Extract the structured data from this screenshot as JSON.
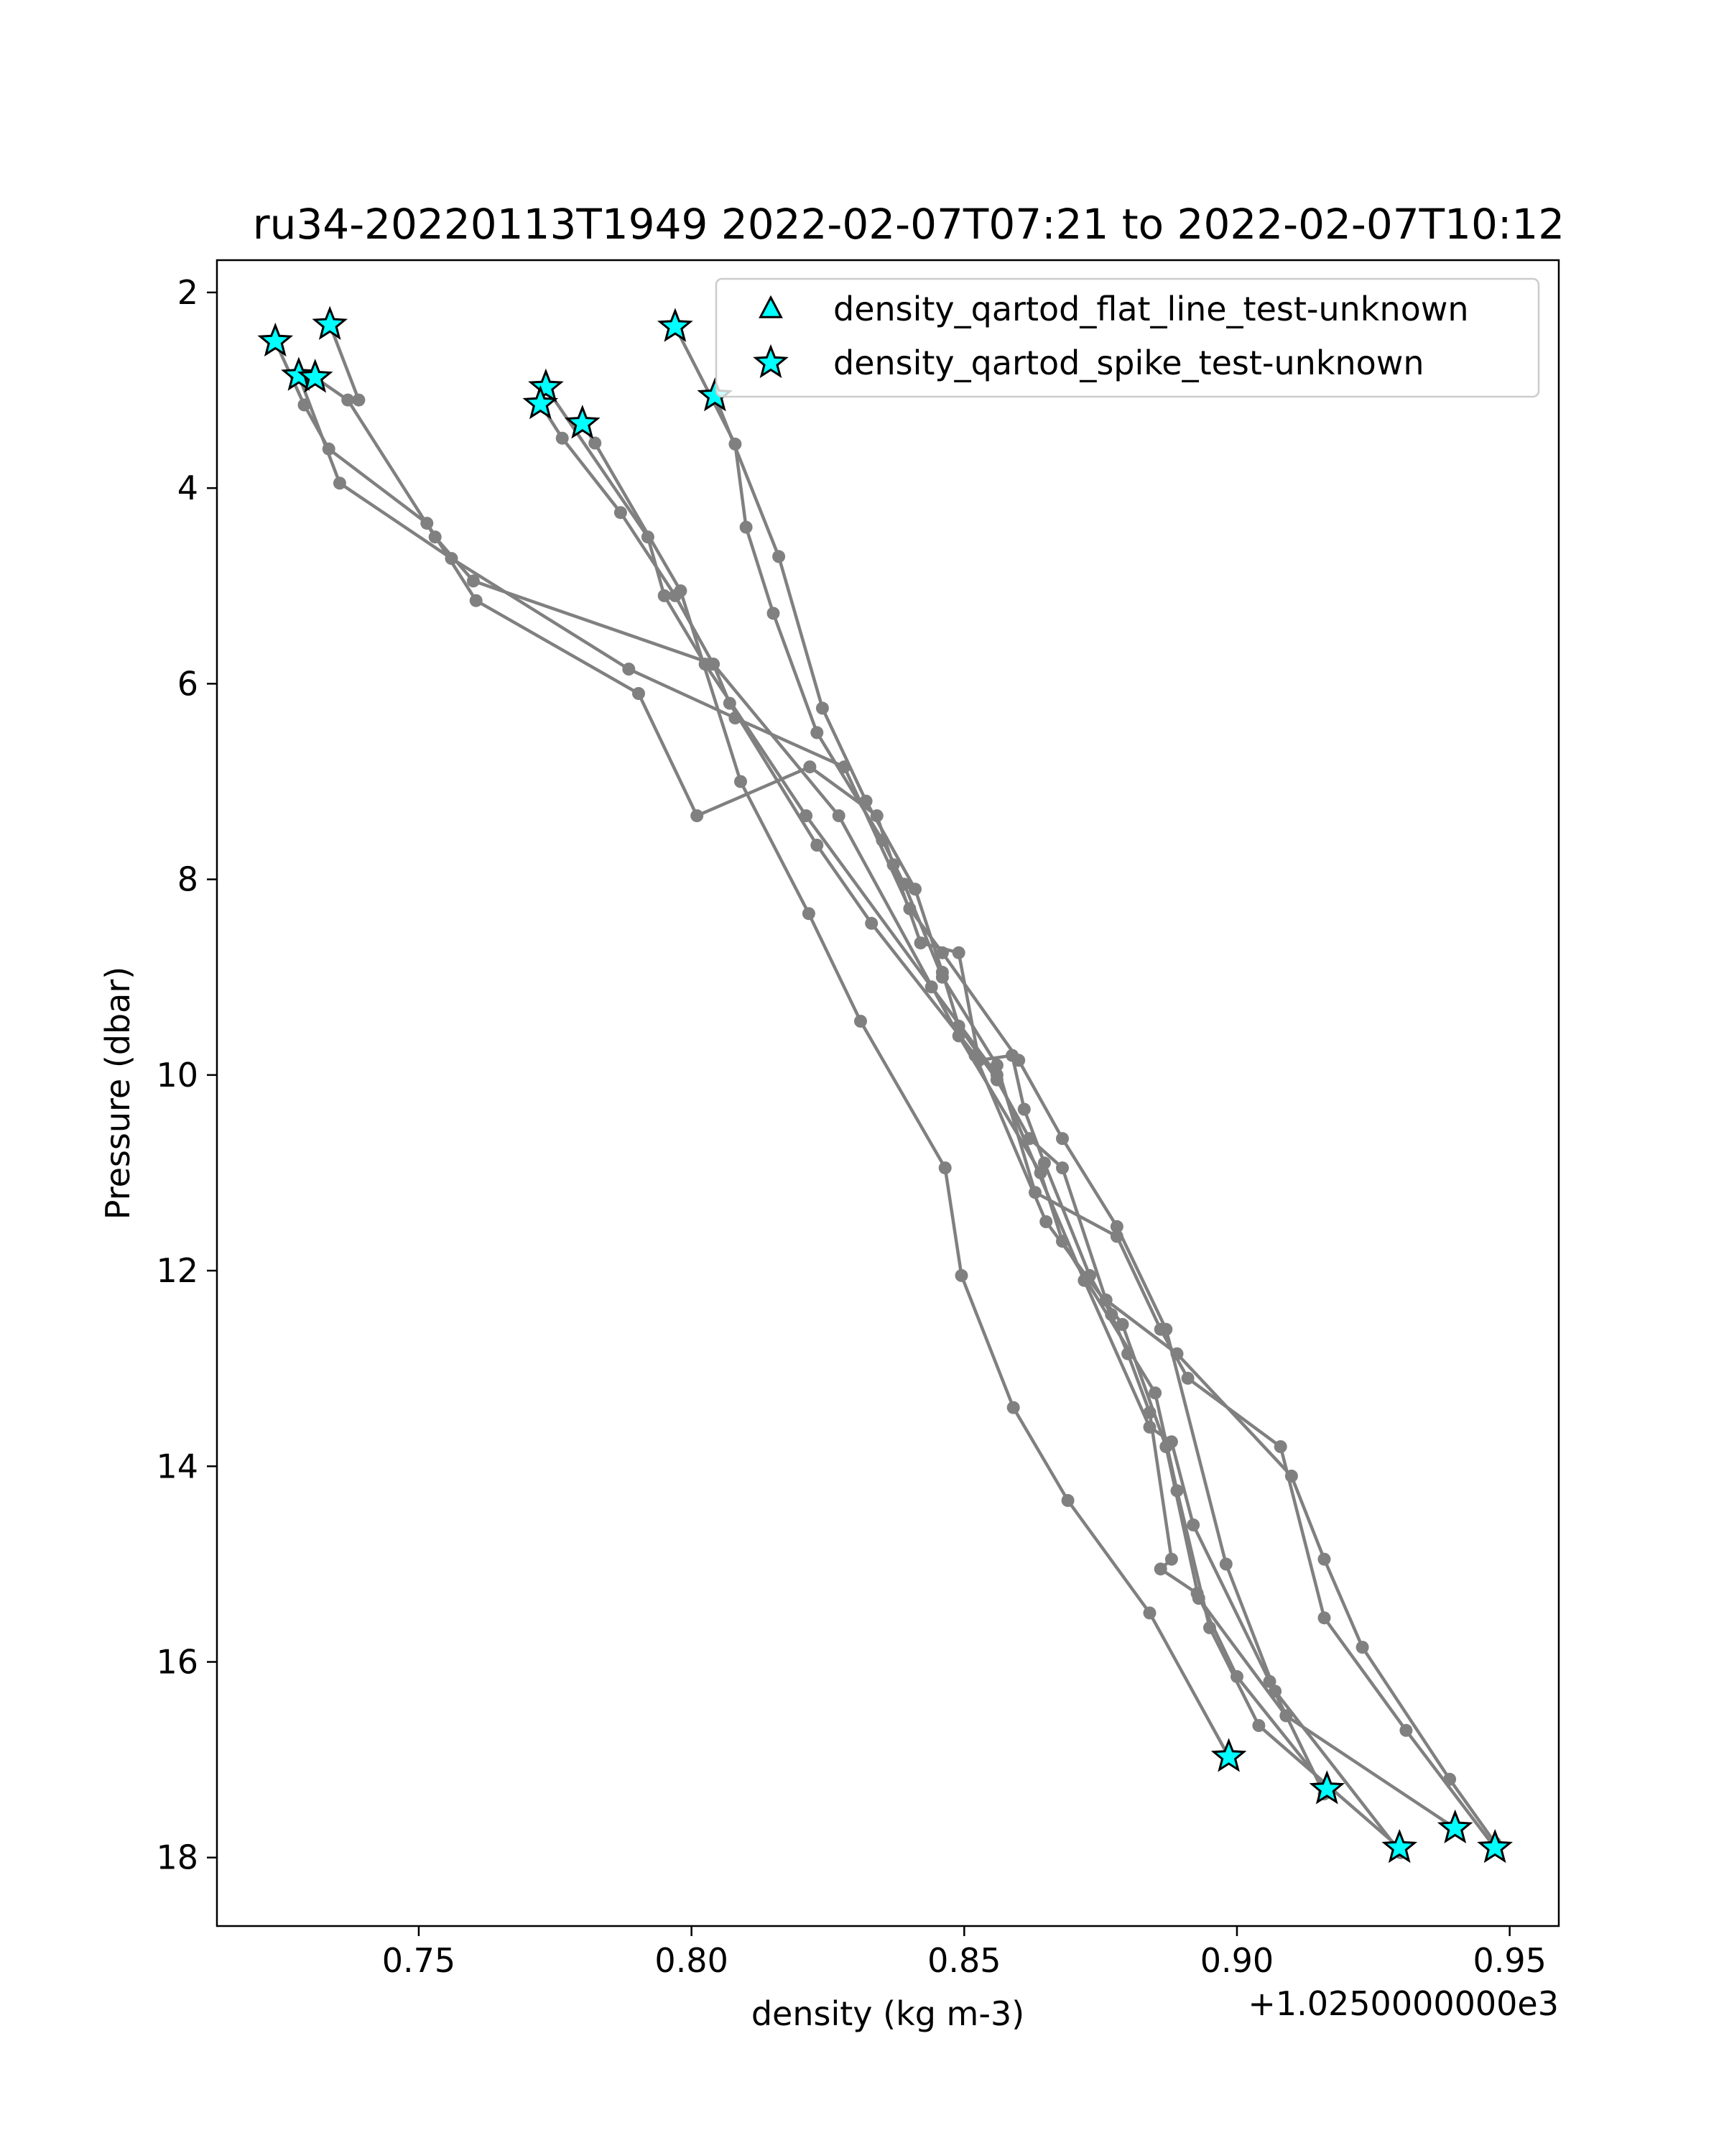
{
  "chart_data": {
    "type": "line",
    "title": "ru34-20220113T1949 2022-02-07T07:21 to 2022-02-07T10:12",
    "xlabel": "density (kg m-3)",
    "ylabel": "Pressure (dbar)",
    "x_offset_label": "+1.0250000000e3",
    "xlim": [
      0.713,
      0.959
    ],
    "ylim": [
      18.7,
      1.67
    ],
    "y_inverted": true,
    "x_ticks": [
      0.75,
      0.8,
      0.85,
      0.9,
      0.95
    ],
    "x_tick_labels": [
      "0.75",
      "0.80",
      "0.85",
      "0.90",
      "0.95"
    ],
    "y_ticks": [
      2,
      4,
      6,
      8,
      10,
      12,
      14,
      16,
      18
    ],
    "y_tick_labels": [
      "2",
      "4",
      "6",
      "8",
      "10",
      "12",
      "14",
      "16",
      "18"
    ],
    "grid": false,
    "legend_placement": "top-right",
    "legend": [
      {
        "label": "density_qartod_flat_line_test-unknown",
        "marker": "triangle",
        "color": "#00ffff"
      },
      {
        "label": "density_qartod_spike_test-unknown",
        "marker": "star",
        "color": "#00ffff"
      }
    ],
    "line_color": "#808080",
    "flag_color": "#00ffff",
    "series": [
      {
        "points": [
          [
            0.7237,
            2.5
          ],
          [
            0.729,
            3.15
          ],
          [
            0.7335,
            3.6
          ],
          [
            0.7515,
            4.36
          ],
          [
            0.7605,
            5.15
          ],
          [
            0.7903,
            6.1
          ],
          [
            0.801,
            7.35
          ],
          [
            0.8217,
            6.85
          ],
          [
            0.834,
            7.35
          ],
          [
            0.837,
            7.85
          ],
          [
            0.842,
            8.65
          ],
          [
            0.849,
            8.75
          ],
          [
            0.8527,
            9.85
          ],
          [
            0.8588,
            9.8
          ],
          [
            0.861,
            10.35
          ],
          [
            0.8647,
            10.9
          ],
          [
            0.873,
            12.05
          ],
          [
            0.877,
            12.45
          ],
          [
            0.88,
            12.85
          ],
          [
            0.884,
            13.45
          ],
          [
            0.888,
            14.95
          ],
          [
            0.886,
            15.05
          ],
          [
            0.8927,
            15.3
          ],
          [
            0.9,
            16.15
          ],
          [
            0.9165,
            17.3
          ]
        ]
      },
      {
        "points": [
          [
            0.728,
            2.85
          ],
          [
            0.7355,
            3.95
          ],
          [
            0.756,
            4.72
          ],
          [
            0.7885,
            5.85
          ],
          [
            0.808,
            6.35
          ],
          [
            0.828,
            6.85
          ],
          [
            0.84,
            8.3
          ],
          [
            0.846,
            8.75
          ],
          [
            0.86,
            9.85
          ],
          [
            0.868,
            10.65
          ],
          [
            0.878,
            11.55
          ],
          [
            0.887,
            12.6
          ],
          [
            0.898,
            15.0
          ],
          [
            0.907,
            16.3
          ],
          [
            0.93,
            17.95
          ]
        ]
      },
      {
        "points": [
          [
            0.731,
            2.87
          ],
          [
            0.737,
            3.1
          ],
          [
            0.753,
            4.5
          ],
          [
            0.76,
            4.95
          ],
          [
            0.804,
            5.8
          ],
          [
            0.807,
            6.2
          ],
          [
            0.823,
            7.65
          ],
          [
            0.833,
            8.45
          ],
          [
            0.852,
            9.8
          ],
          [
            0.865,
            11.5
          ],
          [
            0.879,
            12.55
          ],
          [
            0.887,
            13.8
          ],
          [
            0.893,
            15.35
          ],
          [
            0.909,
            16.55
          ],
          [
            0.94,
            17.7
          ]
        ]
      },
      {
        "points": [
          [
            0.7337,
            2.33
          ],
          [
            0.739,
            3.1
          ]
        ]
      },
      {
        "points": [
          [
            0.7723,
            3.14
          ],
          [
            0.7763,
            3.49
          ],
          [
            0.787,
            4.25
          ],
          [
            0.797,
            5.1
          ],
          [
            0.804,
            5.8
          ],
          [
            0.827,
            7.35
          ],
          [
            0.849,
            9.6
          ],
          [
            0.864,
            11.0
          ],
          [
            0.868,
            11.7
          ],
          [
            0.885,
            13.25
          ],
          [
            0.889,
            14.25
          ],
          [
            0.895,
            15.65
          ],
          [
            0.904,
            16.65
          ],
          [
            0.9298,
            17.9
          ]
        ]
      },
      {
        "points": [
          [
            0.7733,
            2.97
          ],
          [
            0.792,
            4.5
          ],
          [
            0.795,
            5.1
          ],
          [
            0.8025,
            5.8
          ],
          [
            0.821,
            7.35
          ],
          [
            0.844,
            9.1
          ],
          [
            0.856,
            10.0
          ],
          [
            0.872,
            12.1
          ],
          [
            0.884,
            13.6
          ],
          [
            0.888,
            13.75
          ],
          [
            0.892,
            14.6
          ],
          [
            0.906,
            16.2
          ],
          [
            0.916,
            17.35
          ]
        ]
      },
      {
        "points": [
          [
            0.78,
            3.34
          ],
          [
            0.7823,
            3.54
          ],
          [
            0.798,
            5.05
          ],
          [
            0.809,
            7.0
          ],
          [
            0.8215,
            8.35
          ],
          [
            0.831,
            9.45
          ],
          [
            0.8465,
            10.95
          ],
          [
            0.8495,
            12.05
          ],
          [
            0.859,
            13.4
          ],
          [
            0.869,
            14.35
          ],
          [
            0.884,
            15.5
          ],
          [
            0.8985,
            16.97
          ]
        ]
      },
      {
        "points": [
          [
            0.797,
            2.35
          ],
          [
            0.808,
            3.55
          ],
          [
            0.81,
            4.4
          ],
          [
            0.815,
            5.28
          ],
          [
            0.823,
            6.5
          ],
          [
            0.835,
            7.6
          ],
          [
            0.839,
            8.05
          ],
          [
            0.846,
            9.0
          ],
          [
            0.856,
            9.9
          ],
          [
            0.863,
            11.2
          ],
          [
            0.878,
            11.65
          ],
          [
            0.886,
            12.6
          ],
          [
            0.891,
            13.1
          ],
          [
            0.908,
            13.8
          ],
          [
            0.916,
            15.55
          ],
          [
            0.931,
            16.7
          ],
          [
            0.9473,
            17.9
          ]
        ]
      },
      {
        "points": [
          [
            0.8043,
            3.06
          ],
          [
            0.816,
            4.7
          ],
          [
            0.824,
            6.25
          ],
          [
            0.832,
            7.2
          ],
          [
            0.841,
            8.1
          ],
          [
            0.846,
            8.95
          ],
          [
            0.849,
            9.5
          ],
          [
            0.856,
            10.05
          ],
          [
            0.862,
            10.65
          ],
          [
            0.868,
            10.95
          ],
          [
            0.876,
            12.3
          ],
          [
            0.889,
            12.85
          ],
          [
            0.91,
            14.1
          ],
          [
            0.916,
            14.95
          ],
          [
            0.923,
            15.85
          ],
          [
            0.939,
            17.2
          ],
          [
            0.9473,
            17.85
          ]
        ]
      }
    ],
    "spike_flags": [
      [
        0.7337,
        2.33
      ],
      [
        0.7237,
        2.5
      ],
      [
        0.728,
        2.85
      ],
      [
        0.731,
        2.87
      ],
      [
        0.7733,
        2.97
      ],
      [
        0.7723,
        3.14
      ],
      [
        0.78,
        3.34
      ],
      [
        0.797,
        2.35
      ],
      [
        0.8043,
        3.06
      ],
      [
        0.8985,
        16.97
      ],
      [
        0.9165,
        17.3
      ],
      [
        0.9298,
        17.9
      ],
      [
        0.94,
        17.7
      ],
      [
        0.9473,
        17.9
      ]
    ]
  }
}
